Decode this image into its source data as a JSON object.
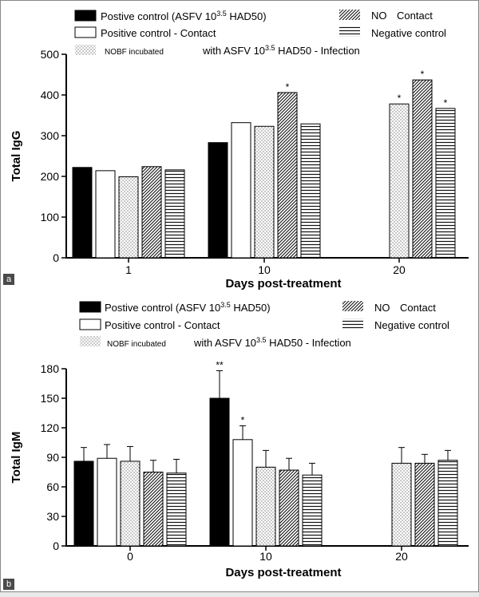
{
  "legend_entries": {
    "pos_infected_main": "Postive control (ASFV 10",
    "pos_infected_sup": "3.5",
    "pos_infected_tail": " HAD50)",
    "pos_contact": "Positive control - Contact",
    "nobf_small": "NOBF incubated",
    "nobf_main": "with ASFV 10",
    "nobf_sup": "3.5",
    "nobf_tail": " HAD50 - Infection",
    "no_contact_1": "NO",
    "no_contact_2": "Contact",
    "negative": "Negative control"
  },
  "colors": {
    "black": "#000000",
    "white": "#ffffff",
    "dots": "#999999",
    "lines": "#222222"
  },
  "chart_data": [
    {
      "panel": "a",
      "type": "bar",
      "ylabel": "Total IgG",
      "xlabel": "Days post-treatment",
      "ylim": [
        0,
        500
      ],
      "yticks": [
        0,
        100,
        200,
        300,
        400,
        500
      ],
      "categories": [
        "1",
        "10",
        "20"
      ],
      "series": [
        {
          "name": "Postive control (ASFV 10^3.5 HAD50)",
          "pattern": "black",
          "values": [
            222,
            283,
            null
          ],
          "sig": [
            "",
            "",
            ""
          ]
        },
        {
          "name": "Positive control - Contact",
          "pattern": "white",
          "values": [
            214,
            332,
            null
          ],
          "sig": [
            "",
            "",
            ""
          ]
        },
        {
          "name": "NOBF incubated with ASFV 10^3.5 HAD50 - Infection",
          "pattern": "dots",
          "values": [
            199,
            323,
            378
          ],
          "sig": [
            "",
            "",
            "*"
          ]
        },
        {
          "name": "NO Contact",
          "pattern": "diag",
          "values": [
            224,
            406,
            437
          ],
          "sig": [
            "",
            "*",
            "*"
          ]
        },
        {
          "name": "Negative control",
          "pattern": "horiz",
          "values": [
            216,
            329,
            367
          ],
          "sig": [
            "",
            "",
            "*"
          ]
        }
      ]
    },
    {
      "panel": "b",
      "type": "bar",
      "ylabel": "Total IgM",
      "xlabel": "Days post-treatment",
      "ylim": [
        0,
        180
      ],
      "yticks": [
        0,
        30,
        60,
        90,
        120,
        150,
        180
      ],
      "categories": [
        "0",
        "10",
        "20"
      ],
      "series": [
        {
          "name": "Postive control (ASFV 10^3.5 HAD50)",
          "pattern": "black",
          "values": [
            86,
            150,
            null
          ],
          "errors": [
            14,
            28,
            null
          ],
          "sig": [
            "",
            "**",
            ""
          ]
        },
        {
          "name": "Positive control - Contact",
          "pattern": "white",
          "values": [
            89,
            108,
            null
          ],
          "errors": [
            14,
            14,
            null
          ],
          "sig": [
            "",
            "*",
            ""
          ]
        },
        {
          "name": "NOBF incubated with ASFV 10^3.5 HAD50 - Infection",
          "pattern": "dots",
          "values": [
            86,
            80,
            84
          ],
          "errors": [
            15,
            17,
            16
          ],
          "sig": [
            "",
            "",
            ""
          ]
        },
        {
          "name": "NO Contact",
          "pattern": "diag",
          "values": [
            75,
            77,
            84
          ],
          "errors": [
            12,
            12,
            9
          ],
          "sig": [
            "",
            "",
            ""
          ]
        },
        {
          "name": "Negative control",
          "pattern": "horiz",
          "values": [
            74,
            72,
            87
          ],
          "errors": [
            14,
            12,
            10
          ],
          "sig": [
            "",
            "",
            ""
          ]
        }
      ]
    }
  ]
}
